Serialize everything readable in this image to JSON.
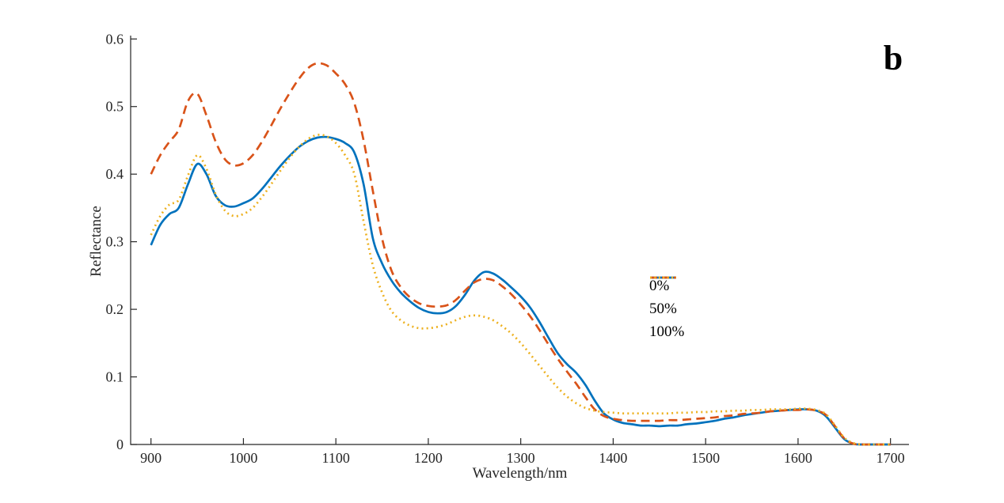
{
  "figure": {
    "panel_label": "b",
    "background": "#ffffff"
  },
  "chart_data": {
    "type": "line",
    "title": "",
    "xlabel": "Wavelength/nm",
    "ylabel": "Reflectance",
    "xlim": [
      878,
      1720
    ],
    "ylim": [
      0,
      0.605
    ],
    "grid": false,
    "legend_position": "right-center",
    "axis_color": "#262626",
    "x_ticks": [
      900,
      1000,
      1100,
      1200,
      1300,
      1400,
      1500,
      1600,
      1700
    ],
    "y_ticks": [
      0,
      0.1,
      0.2,
      0.3,
      0.4,
      0.5,
      0.6
    ],
    "y_tick_labels": [
      "0",
      "0.1",
      "0.2",
      "0.3",
      "0.4",
      "0.5",
      "0.6"
    ],
    "x": [
      900,
      910,
      920,
      930,
      940,
      950,
      960,
      970,
      980,
      990,
      1000,
      1010,
      1020,
      1030,
      1040,
      1050,
      1060,
      1070,
      1080,
      1090,
      1100,
      1110,
      1120,
      1130,
      1140,
      1150,
      1160,
      1170,
      1180,
      1190,
      1200,
      1210,
      1220,
      1230,
      1240,
      1250,
      1260,
      1270,
      1280,
      1290,
      1300,
      1310,
      1320,
      1330,
      1340,
      1350,
      1360,
      1370,
      1380,
      1390,
      1400,
      1410,
      1420,
      1430,
      1440,
      1450,
      1460,
      1470,
      1480,
      1490,
      1500,
      1510,
      1520,
      1530,
      1540,
      1550,
      1560,
      1570,
      1580,
      1590,
      1600,
      1610,
      1620,
      1630,
      1640,
      1650,
      1660,
      1670,
      1680,
      1690,
      1700
    ],
    "series": [
      {
        "name": "0%",
        "color": "#0072BD",
        "line_style": "solid",
        "values": [
          0.295,
          0.325,
          0.341,
          0.35,
          0.385,
          0.415,
          0.4,
          0.368,
          0.354,
          0.352,
          0.357,
          0.364,
          0.378,
          0.395,
          0.412,
          0.427,
          0.44,
          0.449,
          0.454,
          0.455,
          0.452,
          0.446,
          0.432,
          0.385,
          0.305,
          0.268,
          0.243,
          0.225,
          0.212,
          0.202,
          0.196,
          0.194,
          0.196,
          0.205,
          0.222,
          0.243,
          0.255,
          0.253,
          0.244,
          0.232,
          0.219,
          0.203,
          0.182,
          0.158,
          0.135,
          0.119,
          0.106,
          0.088,
          0.065,
          0.046,
          0.037,
          0.032,
          0.03,
          0.028,
          0.028,
          0.027,
          0.028,
          0.028,
          0.03,
          0.031,
          0.033,
          0.035,
          0.038,
          0.04,
          0.043,
          0.045,
          0.047,
          0.049,
          0.05,
          0.051,
          0.052,
          0.052,
          0.05,
          0.042,
          0.025,
          0.008,
          0.001,
          0.0,
          0.0,
          0.0,
          0.0
        ]
      },
      {
        "name": "50%",
        "color": "#D95319",
        "line_style": "dashed",
        "values": [
          0.4,
          0.428,
          0.448,
          0.466,
          0.508,
          0.519,
          0.487,
          0.448,
          0.422,
          0.413,
          0.416,
          0.428,
          0.448,
          0.472,
          0.497,
          0.52,
          0.541,
          0.557,
          0.564,
          0.561,
          0.549,
          0.533,
          0.505,
          0.45,
          0.375,
          0.305,
          0.258,
          0.233,
          0.218,
          0.209,
          0.205,
          0.204,
          0.206,
          0.214,
          0.228,
          0.24,
          0.245,
          0.243,
          0.234,
          0.222,
          0.207,
          0.19,
          0.17,
          0.148,
          0.127,
          0.108,
          0.09,
          0.07,
          0.052,
          0.042,
          0.038,
          0.036,
          0.035,
          0.035,
          0.035,
          0.035,
          0.036,
          0.036,
          0.037,
          0.038,
          0.039,
          0.04,
          0.042,
          0.043,
          0.045,
          0.046,
          0.047,
          0.049,
          0.05,
          0.051,
          0.051,
          0.052,
          0.05,
          0.044,
          0.027,
          0.009,
          0.001,
          0.0,
          0.0,
          0.0,
          0.0
        ]
      },
      {
        "name": "100%",
        "color": "#EDB120",
        "line_style": "dotted",
        "values": [
          0.31,
          0.338,
          0.355,
          0.362,
          0.398,
          0.428,
          0.408,
          0.37,
          0.346,
          0.338,
          0.341,
          0.35,
          0.366,
          0.385,
          0.405,
          0.424,
          0.44,
          0.452,
          0.458,
          0.456,
          0.446,
          0.428,
          0.4,
          0.33,
          0.265,
          0.225,
          0.198,
          0.184,
          0.176,
          0.172,
          0.172,
          0.174,
          0.178,
          0.184,
          0.189,
          0.191,
          0.189,
          0.184,
          0.175,
          0.164,
          0.15,
          0.134,
          0.117,
          0.1,
          0.084,
          0.071,
          0.061,
          0.054,
          0.05,
          0.048,
          0.047,
          0.046,
          0.046,
          0.046,
          0.046,
          0.046,
          0.046,
          0.047,
          0.047,
          0.048,
          0.048,
          0.049,
          0.049,
          0.05,
          0.05,
          0.051,
          0.051,
          0.052,
          0.052,
          0.052,
          0.053,
          0.053,
          0.051,
          0.045,
          0.028,
          0.01,
          0.002,
          0.0,
          0.0,
          0.0,
          0.0
        ]
      }
    ]
  }
}
